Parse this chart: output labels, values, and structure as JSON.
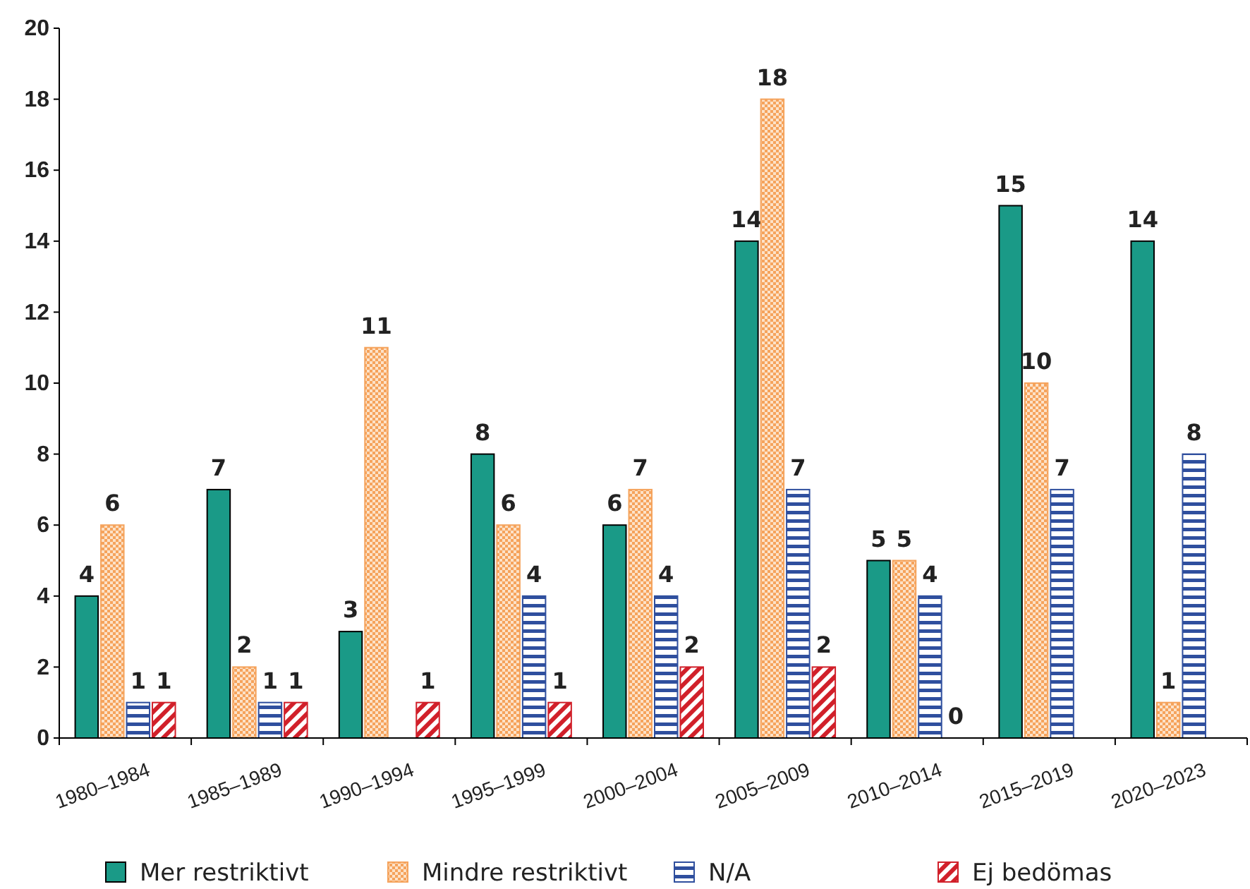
{
  "chart_data": {
    "type": "bar",
    "categories": [
      "1980–1984",
      "1985–1989",
      "1990–1994",
      "1995–1999",
      "2000–2004",
      "2005–2009",
      "2010–2014",
      "2015–2019",
      "2020–2023"
    ],
    "series": [
      {
        "name": "Mer restriktivt",
        "color": "#1a9a87",
        "values": [
          4,
          7,
          3,
          8,
          6,
          14,
          5,
          15,
          14
        ]
      },
      {
        "name": "Mindre restriktivt",
        "color": "#f5a35c",
        "values": [
          6,
          2,
          11,
          6,
          7,
          18,
          5,
          10,
          1
        ]
      },
      {
        "name": "N/A",
        "color": "#2f4f9e",
        "values": [
          1,
          1,
          null,
          4,
          4,
          7,
          4,
          7,
          8
        ]
      },
      {
        "name": "Ej bedömas",
        "color": "#d1202a",
        "values": [
          1,
          1,
          1,
          1,
          2,
          2,
          0,
          null,
          null
        ]
      }
    ],
    "ylim": [
      0,
      20
    ],
    "yticks": [
      0,
      2,
      4,
      6,
      8,
      10,
      12,
      14,
      16,
      18,
      20
    ],
    "grid": false,
    "legend": "bottom",
    "data_labels": true
  }
}
